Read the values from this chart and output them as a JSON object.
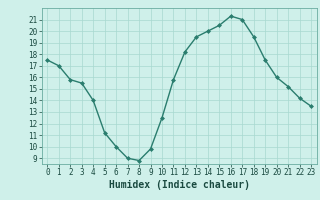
{
  "x": [
    0,
    1,
    2,
    3,
    4,
    5,
    6,
    7,
    8,
    9,
    10,
    11,
    12,
    13,
    14,
    15,
    16,
    17,
    18,
    19,
    20,
    21,
    22,
    23
  ],
  "y": [
    17.5,
    17.0,
    15.8,
    15.5,
    14.0,
    11.2,
    10.0,
    9.0,
    8.8,
    9.8,
    12.5,
    15.8,
    18.2,
    19.5,
    20.0,
    20.5,
    21.3,
    21.0,
    19.5,
    17.5,
    16.0,
    15.2,
    14.2,
    13.5
  ],
  "line_color": "#2a7d6e",
  "marker": "D",
  "marker_size": 2.0,
  "bg_color": "#cff0ea",
  "grid_color": "#a8d8d0",
  "xlabel": "Humidex (Indice chaleur)",
  "ylim": [
    8.5,
    22
  ],
  "xlim": [
    -0.5,
    23.5
  ],
  "yticks": [
    9,
    10,
    11,
    12,
    13,
    14,
    15,
    16,
    17,
    18,
    19,
    20,
    21
  ],
  "xticks": [
    0,
    1,
    2,
    3,
    4,
    5,
    6,
    7,
    8,
    9,
    10,
    11,
    12,
    13,
    14,
    15,
    16,
    17,
    18,
    19,
    20,
    21,
    22,
    23
  ],
  "xlabel_fontsize": 7,
  "tick_fontsize": 5.5,
  "line_width": 1.0,
  "text_color": "#1a4a40"
}
